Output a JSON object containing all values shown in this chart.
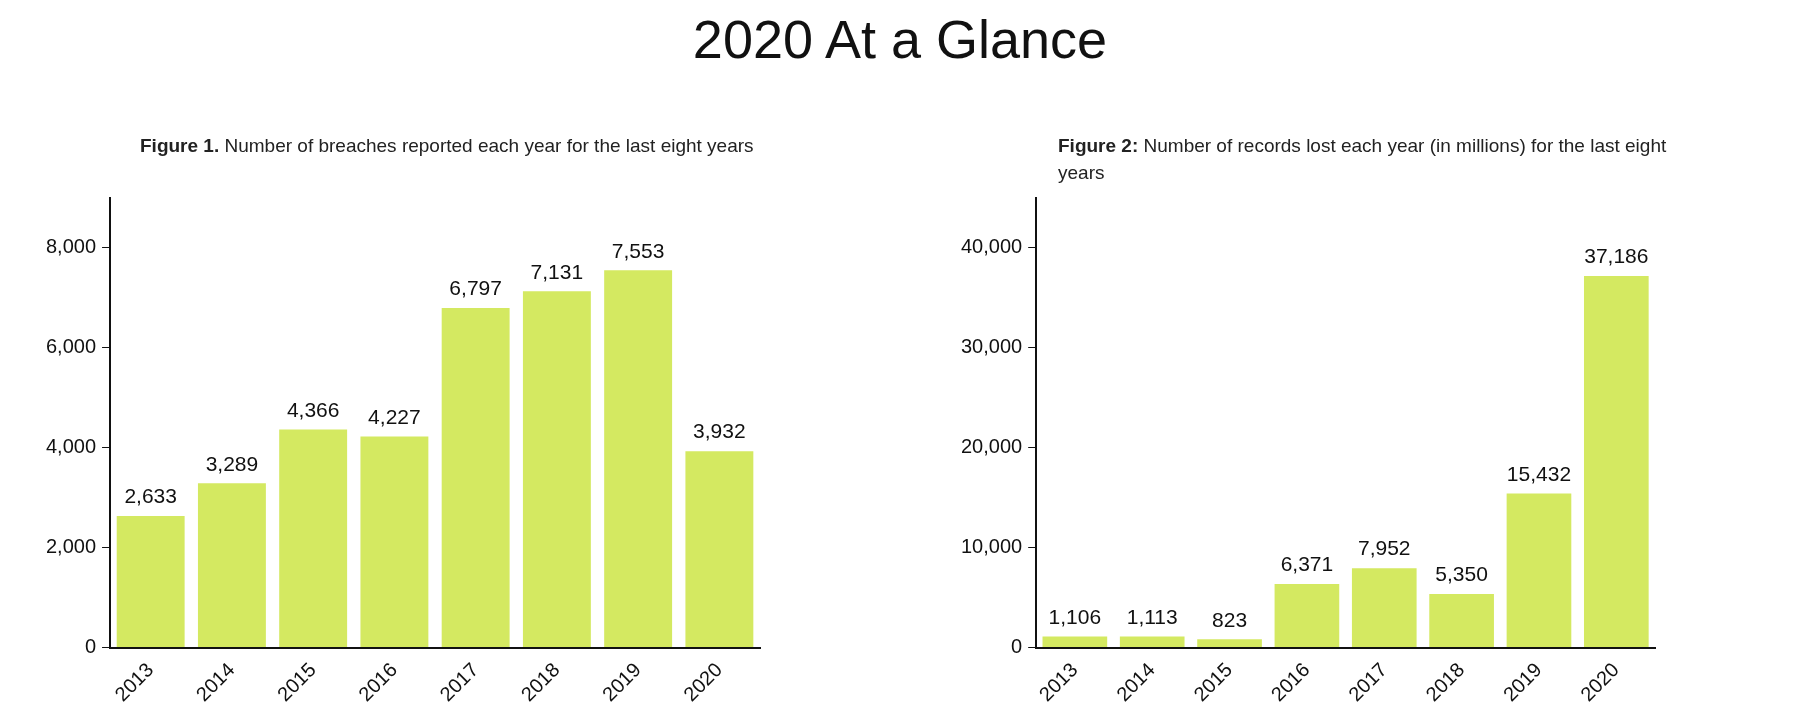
{
  "chart_data": [
    {
      "type": "bar",
      "title": "2020 At a Glance",
      "subtitle": "Figure 1. Number of breaches reported each year for the last eight years",
      "categories": [
        "2013",
        "2014",
        "2015",
        "2016",
        "2017",
        "2018",
        "2019",
        "2020"
      ],
      "values": [
        2633,
        3289,
        4366,
        4227,
        6797,
        7131,
        7553,
        3932
      ],
      "color": "#d4e961",
      "ylim": [
        0,
        9000
      ],
      "yticks": [
        0,
        {
          "value": 2000,
          "label": "2,000"
        },
        {
          "value": 4000,
          "label": "4,000"
        },
        {
          "value": 6000,
          "label": "6,000"
        },
        {
          "value": 8000,
          "label": "8,000"
        }
      ],
      "value_labels": [
        "2,633",
        "3,289",
        "4,366",
        "4,227",
        "6,797",
        "7,131",
        "7,553",
        "3,932"
      ],
      "grid": false,
      "legend": false
    },
    {
      "type": "bar",
      "subtitle": "Figure 2: Number of records lost each year (in millions) for the last eight years",
      "categories": [
        "2013",
        "2014",
        "2015",
        "2016",
        "2017",
        "2018",
        "2019",
        "2020"
      ],
      "values": [
        1106,
        1113,
        823,
        6371,
        7952,
        5350,
        15432,
        37186
      ],
      "color": "#d4e961",
      "ylim": [
        0,
        45000
      ],
      "yticks": [
        0,
        {
          "value": 10000,
          "label": "10,000"
        },
        {
          "value": 20000,
          "label": "20,000"
        },
        {
          "value": 30000,
          "label": "30,000"
        },
        {
          "value": 40000,
          "label": "40,000"
        }
      ],
      "value_labels": [
        "1,106",
        "1,113",
        "823",
        "6,371",
        "7,952",
        "5,350",
        "15,432",
        "37,186"
      ],
      "grid": false,
      "legend": false
    }
  ]
}
